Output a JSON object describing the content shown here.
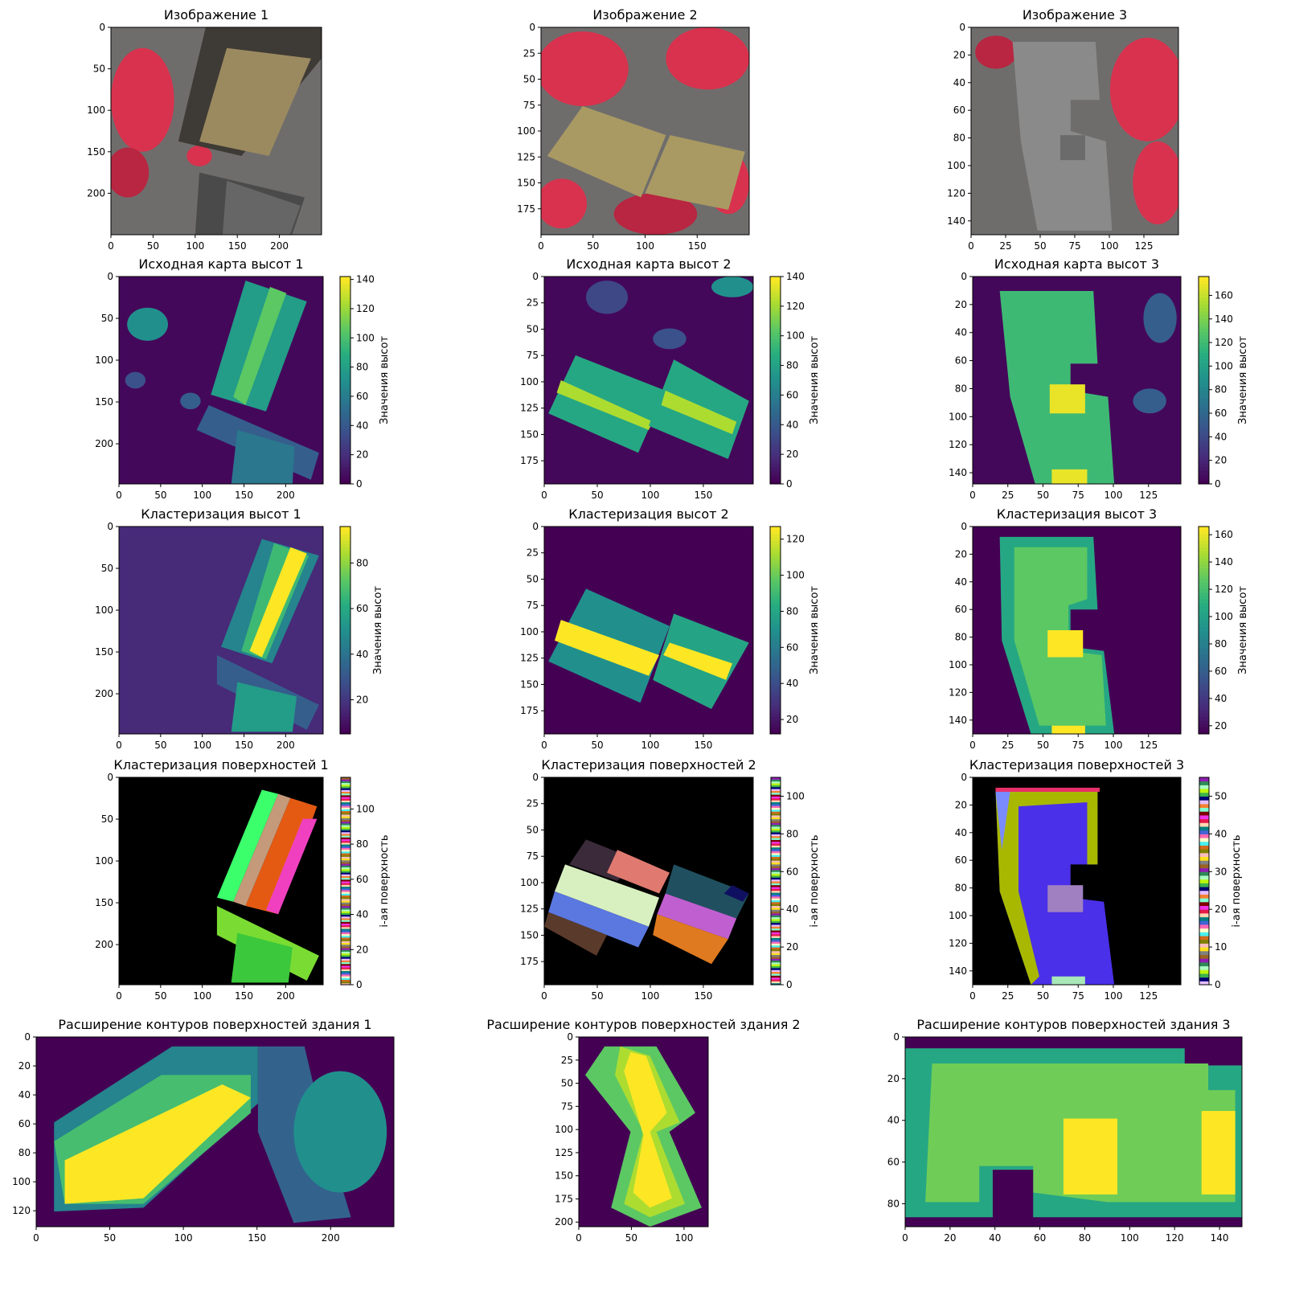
{
  "figure": {
    "colorbar_label_heights": "Значения высот",
    "colorbar_label_surfaces": "i-ая поверхность"
  },
  "chart_data": [
    {
      "type": "heatmap",
      "title": "Изображение 1",
      "image_kind": "false-color aerial photo",
      "x_ticks": [
        0,
        50,
        100,
        150,
        200
      ],
      "y_ticks": [
        0,
        50,
        100,
        150,
        200
      ],
      "xlim": [
        0,
        250
      ],
      "ylim": [
        250,
        0
      ]
    },
    {
      "type": "heatmap",
      "title": "Изображение 2",
      "image_kind": "false-color aerial photo",
      "x_ticks": [
        0,
        50,
        100,
        150
      ],
      "y_ticks": [
        0,
        25,
        50,
        75,
        100,
        125,
        150,
        175
      ],
      "xlim": [
        0,
        200
      ],
      "ylim": [
        200,
        0
      ]
    },
    {
      "type": "heatmap",
      "title": "Изображение 3",
      "image_kind": "false-color aerial photo",
      "x_ticks": [
        0,
        25,
        50,
        75,
        100,
        125
      ],
      "y_ticks": [
        0,
        20,
        40,
        60,
        80,
        100,
        120,
        140
      ],
      "xlim": [
        0,
        150
      ],
      "ylim": [
        150,
        0
      ]
    },
    {
      "type": "heatmap",
      "title": "Исходная карта высот 1",
      "colormap": "viridis",
      "x_ticks": [
        0,
        50,
        100,
        150,
        200
      ],
      "y_ticks": [
        0,
        50,
        100,
        150,
        200
      ],
      "xlim": [
        0,
        245
      ],
      "ylim": [
        248,
        0
      ],
      "colorbar": {
        "ticks": [
          0,
          20,
          40,
          60,
          80,
          100,
          120,
          140
        ],
        "range": [
          0,
          142
        ],
        "label": "Значения высот"
      }
    },
    {
      "type": "heatmap",
      "title": "Исходная карта высот 2",
      "colormap": "viridis",
      "x_ticks": [
        0,
        50,
        100,
        150
      ],
      "y_ticks": [
        0,
        25,
        50,
        75,
        100,
        125,
        150,
        175
      ],
      "xlim": [
        0,
        197
      ],
      "ylim": [
        197,
        0
      ],
      "colorbar": {
        "ticks": [
          0,
          20,
          40,
          60,
          80,
          100,
          120,
          140
        ],
        "range": [
          0,
          140
        ],
        "label": "Значения высот"
      }
    },
    {
      "type": "heatmap",
      "title": "Исходная карта высот 3",
      "colormap": "viridis",
      "x_ticks": [
        0,
        25,
        50,
        75,
        100,
        125
      ],
      "y_ticks": [
        0,
        20,
        40,
        60,
        80,
        100,
        120,
        140
      ],
      "xlim": [
        0,
        148
      ],
      "ylim": [
        148,
        0
      ],
      "colorbar": {
        "ticks": [
          0,
          20,
          40,
          60,
          80,
          100,
          120,
          140,
          160
        ],
        "range": [
          0,
          176
        ],
        "label": "Значения высот"
      }
    },
    {
      "type": "heatmap",
      "title": "Кластеризация высот 1",
      "colormap": "viridis",
      "x_ticks": [
        0,
        50,
        100,
        150,
        200
      ],
      "y_ticks": [
        0,
        50,
        100,
        150,
        200
      ],
      "xlim": [
        0,
        245
      ],
      "ylim": [
        248,
        0
      ],
      "colorbar": {
        "ticks": [
          20,
          40,
          60,
          80
        ],
        "range": [
          5,
          96
        ],
        "label": "Значения высот"
      }
    },
    {
      "type": "heatmap",
      "title": "Кластеризация высот 2",
      "colormap": "viridis",
      "x_ticks": [
        0,
        50,
        100,
        150
      ],
      "y_ticks": [
        0,
        25,
        50,
        75,
        100,
        125,
        150,
        175
      ],
      "xlim": [
        0,
        197
      ],
      "ylim": [
        197,
        0
      ],
      "colorbar": {
        "ticks": [
          20,
          40,
          60,
          80,
          100,
          120
        ],
        "range": [
          12,
          127
        ],
        "label": "Значения высот"
      }
    },
    {
      "type": "heatmap",
      "title": "Кластеризация высот 3",
      "colormap": "viridis",
      "x_ticks": [
        0,
        25,
        50,
        75,
        100,
        125
      ],
      "y_ticks": [
        0,
        20,
        40,
        60,
        80,
        100,
        120,
        140
      ],
      "xlim": [
        0,
        148
      ],
      "ylim": [
        150,
        0
      ],
      "colorbar": {
        "ticks": [
          20,
          40,
          60,
          80,
          100,
          120,
          140,
          160
        ],
        "range": [
          14,
          166
        ],
        "label": "Значения высот"
      }
    },
    {
      "type": "heatmap",
      "title": "Кластеризация поверхностей 1",
      "colormap": "random categorical",
      "x_ticks": [
        0,
        50,
        100,
        150,
        200
      ],
      "y_ticks": [
        0,
        50,
        100,
        150,
        200
      ],
      "xlim": [
        0,
        245
      ],
      "ylim": [
        248,
        0
      ],
      "colorbar": {
        "ticks": [
          0,
          20,
          40,
          60,
          80,
          100
        ],
        "range": [
          0,
          118
        ],
        "label": "i-ая поверхность"
      }
    },
    {
      "type": "heatmap",
      "title": "Кластеризация поверхностей 2",
      "colormap": "random categorical",
      "x_ticks": [
        0,
        50,
        100,
        150
      ],
      "y_ticks": [
        0,
        25,
        50,
        75,
        100,
        125,
        150,
        175
      ],
      "xlim": [
        0,
        197
      ],
      "ylim": [
        197,
        0
      ],
      "colorbar": {
        "ticks": [
          0,
          20,
          40,
          60,
          80,
          100
        ],
        "range": [
          0,
          110
        ],
        "label": "i-ая поверхность"
      }
    },
    {
      "type": "heatmap",
      "title": "Кластеризация поверхностей 3",
      "colormap": "random categorical",
      "x_ticks": [
        0,
        25,
        50,
        75,
        100,
        125
      ],
      "y_ticks": [
        0,
        20,
        40,
        60,
        80,
        100,
        120,
        140
      ],
      "xlim": [
        0,
        148
      ],
      "ylim": [
        150,
        0
      ],
      "colorbar": {
        "ticks": [
          0,
          10,
          20,
          30,
          40,
          50
        ],
        "range": [
          0,
          55
        ],
        "label": "i-ая поверхность"
      }
    },
    {
      "type": "heatmap",
      "title": "Расширение контуров поверхностей здания 1",
      "colormap": "viridis",
      "x_ticks": [
        0,
        50,
        100,
        150,
        200
      ],
      "y_ticks": [
        0,
        20,
        40,
        60,
        80,
        100,
        120
      ],
      "xlim": [
        0,
        243
      ],
      "ylim": [
        131,
        0
      ]
    },
    {
      "type": "heatmap",
      "title": "Расширение контуров поверхностей здания 2",
      "colormap": "viridis",
      "x_ticks": [
        0,
        50,
        100
      ],
      "y_ticks": [
        0,
        25,
        50,
        75,
        100,
        125,
        150,
        175,
        200
      ],
      "xlim": [
        0,
        123
      ],
      "ylim": [
        205,
        0
      ]
    },
    {
      "type": "heatmap",
      "title": "Расширение контуров поверхностей здания 3",
      "colormap": "viridis",
      "x_ticks": [
        0,
        20,
        40,
        60,
        80,
        100,
        120,
        140
      ],
      "y_ticks": [
        0,
        20,
        40,
        60,
        80
      ],
      "xlim": [
        0,
        150
      ],
      "ylim": [
        91,
        0
      ]
    }
  ]
}
